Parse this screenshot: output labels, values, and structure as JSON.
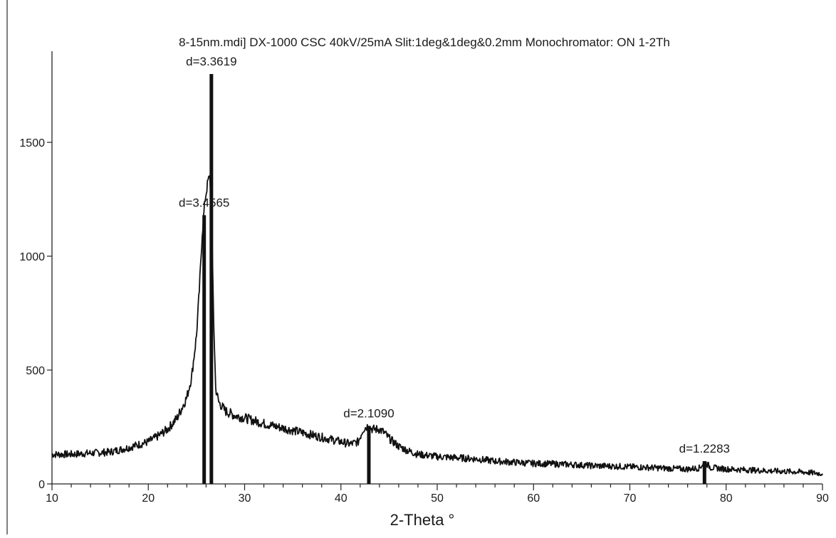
{
  "chart_data": {
    "type": "line",
    "title": "8-15nm.mdi] DX-1000 CSC 40kV/25mA Slit:1deg&1deg&0.2mm Monochromator: ON 1-2Th",
    "xlabel": "2-Theta °",
    "ylabel": "",
    "xlim": [
      10,
      90
    ],
    "ylim": [
      0,
      1900
    ],
    "xticks": [
      10,
      20,
      30,
      40,
      50,
      60,
      70,
      80,
      90
    ],
    "yticks": [
      0,
      500,
      1000,
      1500
    ],
    "grid": false,
    "legend": "none",
    "colors": {
      "line": "#111111",
      "axis": "#222222",
      "background": "#ffffff"
    },
    "series": [
      {
        "x": [
          10,
          12,
          14,
          16,
          18,
          20,
          21,
          22,
          23,
          24,
          24.5,
          25,
          25.3,
          25.6,
          25.9,
          26.2,
          26.4,
          26.6,
          26.8,
          27,
          27.3,
          28,
          29,
          30,
          32,
          34,
          36,
          38,
          40,
          41,
          41.8,
          42.3,
          42.8,
          43.3,
          44,
          44.5,
          45,
          46,
          47,
          48,
          50,
          52,
          54,
          56,
          58,
          60,
          62,
          64,
          66,
          68,
          70,
          72,
          74,
          76,
          77.2,
          77.8,
          78.4,
          80,
          82,
          84,
          86,
          88,
          90
        ],
        "y": [
          130,
          130,
          135,
          140,
          160,
          185,
          210,
          240,
          290,
          380,
          470,
          650,
          850,
          1100,
          1250,
          1330,
          1350,
          1100,
          700,
          420,
          360,
          320,
          300,
          290,
          265,
          245,
          225,
          205,
          185,
          175,
          185,
          240,
          255,
          240,
          240,
          225,
          200,
          165,
          145,
          130,
          120,
          115,
          110,
          100,
          95,
          90,
          88,
          85,
          80,
          78,
          75,
          72,
          68,
          65,
          70,
          95,
          72,
          65,
          62,
          58,
          55,
          52,
          45
        ]
      }
    ],
    "reflections": [
      {
        "x": 25.8,
        "height": 1180,
        "label": "d=3.4565"
      },
      {
        "x": 26.55,
        "height": 1800,
        "label": "d=3.3619"
      },
      {
        "x": 42.9,
        "height": 255,
        "label": "d=2.1090"
      },
      {
        "x": 77.75,
        "height": 100,
        "label": "d=1.2283"
      }
    ]
  }
}
